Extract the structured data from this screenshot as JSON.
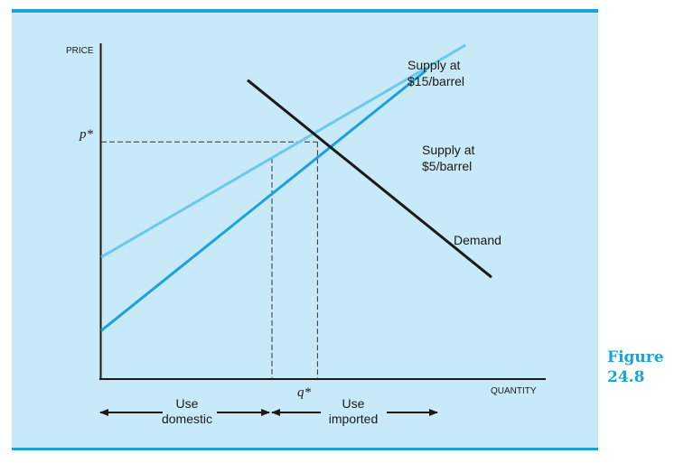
{
  "figure": {
    "caption_line1": "Figure",
    "caption_line2": "24.8",
    "accent_color": "#1aa3d9",
    "panel_color": "#c8e9f8"
  },
  "chart_data": {
    "type": "line",
    "xlabel": "QUANTITY",
    "ylabel": "PRICE",
    "grid": false,
    "series": [
      {
        "name": "Supply at $15/barrel",
        "label_line1": "Supply at",
        "label_line2": "$15/barrel",
        "color": "#1aa3d9",
        "points": [
          [
            0,
            14.5
          ],
          [
            100,
            92.5
          ]
        ]
      },
      {
        "name": "Supply at $5/barrel",
        "label_line1": "Supply at",
        "label_line2": "$5/barrel",
        "color": "#6cc9ee",
        "points": [
          [
            0,
            36.5
          ],
          [
            112,
            100
          ]
        ]
      },
      {
        "name": "Demand",
        "label_line1": "Demand",
        "color": "#1a1a1a",
        "points": [
          [
            45,
            89.5
          ],
          [
            120,
            30.5
          ]
        ]
      }
    ],
    "equilibrium": {
      "p_label": "p*",
      "q_label": "q*",
      "p": 71,
      "q": 66.5,
      "domestic_q": 52.5
    },
    "ranges": [
      {
        "name": "domestic",
        "line1": "Use",
        "line2": "domestic"
      },
      {
        "name": "imported",
        "line1": "Use",
        "line2": "imported"
      }
    ]
  }
}
